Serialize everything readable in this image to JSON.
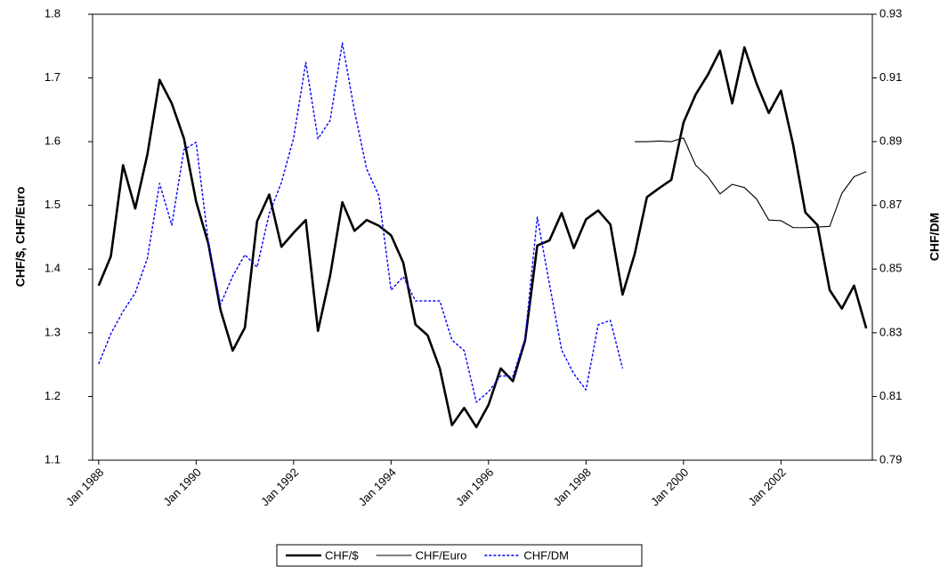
{
  "chart_data": {
    "type": "line",
    "categories": [
      "Jan 1988",
      null,
      null,
      null,
      null,
      null,
      null,
      null,
      "Jan 1990",
      null,
      null,
      null,
      null,
      null,
      null,
      null,
      "Jan 1992",
      null,
      null,
      null,
      null,
      null,
      null,
      null,
      "Jan 1994",
      null,
      null,
      null,
      null,
      null,
      null,
      null,
      "Jan 1996",
      null,
      null,
      null,
      null,
      null,
      null,
      null,
      "Jan 1998",
      null,
      null,
      null,
      null,
      null,
      null,
      null,
      "Jan 2000",
      null,
      null,
      null,
      null,
      null,
      null,
      null,
      "Jan 2002",
      null,
      null,
      null,
      null,
      null,
      null,
      null
    ],
    "y_label": "CHF/$, CHF/Euro",
    "y2_label": "CHF/DM",
    "ylim": [
      1.1,
      1.8
    ],
    "yticks": [
      1.1,
      1.2,
      1.3,
      1.4,
      1.5,
      1.6,
      1.7,
      1.8
    ],
    "y2lim": [
      0.79,
      0.93
    ],
    "y2ticks": [
      0.79,
      0.81,
      0.83,
      0.85,
      0.87,
      0.89,
      0.91,
      0.93
    ],
    "legend": "bottom",
    "series": [
      {
        "name": "CHF/$",
        "color": "#000000",
        "values": [
          1.374,
          1.42,
          1.563,
          1.495,
          1.58,
          1.697,
          1.66,
          1.605,
          1.506,
          1.44,
          1.336,
          1.272,
          1.308,
          1.475,
          1.517,
          1.435,
          1.457,
          1.477,
          1.303,
          1.39,
          1.505,
          1.46,
          1.477,
          1.468,
          1.453,
          1.41,
          1.313,
          1.296,
          1.244,
          1.155,
          1.182,
          1.152,
          1.187,
          1.244,
          1.224,
          1.288,
          1.437,
          1.445,
          1.488,
          1.433,
          1.478,
          1.492,
          1.47,
          1.36,
          1.424,
          1.513,
          1.527,
          1.54,
          1.63,
          1.674,
          1.705,
          1.743,
          1.66,
          1.748,
          1.691,
          1.645,
          1.68,
          1.595,
          1.489,
          1.469,
          1.367,
          1.338,
          1.374,
          1.307
        ]
      },
      {
        "name": "CHF/Euro",
        "color": "#000000",
        "values": [
          null,
          null,
          null,
          null,
          null,
          null,
          null,
          null,
          null,
          null,
          null,
          null,
          null,
          null,
          null,
          null,
          null,
          null,
          null,
          null,
          null,
          null,
          null,
          null,
          null,
          null,
          null,
          null,
          null,
          null,
          null,
          null,
          null,
          null,
          null,
          null,
          null,
          null,
          null,
          null,
          null,
          null,
          null,
          null,
          1.6,
          1.6,
          1.601,
          1.6,
          1.606,
          1.563,
          1.545,
          1.518,
          1.533,
          1.528,
          1.51,
          1.477,
          1.476,
          1.465,
          1.465,
          1.466,
          1.467,
          1.519,
          1.545,
          1.553
        ]
      },
      {
        "name": "CHF/DM",
        "color": "#0000ff",
        "axis": "y2",
        "values": [
          0.8202,
          0.8297,
          0.8367,
          0.8425,
          0.8534,
          0.8769,
          0.8638,
          0.8875,
          0.8898,
          0.8585,
          0.8389,
          0.8478,
          0.8545,
          0.8506,
          0.8674,
          0.8772,
          0.8911,
          0.9149,
          0.8909,
          0.8967,
          0.921,
          0.8995,
          0.8814,
          0.873,
          0.8434,
          0.8476,
          0.84,
          0.84,
          0.84,
          0.8277,
          0.8244,
          0.8082,
          0.8115,
          0.8165,
          0.8163,
          0.8283,
          0.8663,
          0.8453,
          0.8246,
          0.8171,
          0.8121,
          0.8325,
          0.8339,
          0.8188,
          null,
          null,
          null,
          null,
          null,
          null,
          null,
          null,
          null,
          null,
          null,
          null,
          null,
          null,
          null,
          null,
          null,
          null,
          null,
          null
        ]
      }
    ]
  }
}
